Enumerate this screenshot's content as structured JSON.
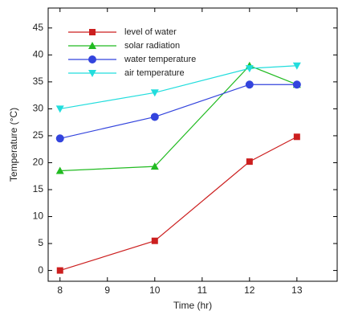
{
  "chart_data": {
    "type": "line",
    "x_label": "Time (hr)",
    "y_label": "Temperature (°C)",
    "x": [
      8,
      10,
      12,
      13
    ],
    "series": [
      {
        "name": "level of water",
        "color": "#cc1f1f",
        "marker": "square",
        "values": [
          0,
          5.5,
          20.2,
          24.8
        ]
      },
      {
        "name": "solar radiation",
        "color": "#22bb22",
        "marker": "triangle",
        "values": [
          18.5,
          19.3,
          38,
          34.5
        ]
      },
      {
        "name": "water temperature",
        "color": "#3344dd",
        "marker": "circle",
        "values": [
          24.5,
          28.5,
          34.5,
          34.5
        ]
      },
      {
        "name": "air temperature",
        "color": "#22dddd",
        "marker": "triangle-down",
        "values": [
          30,
          33,
          37.5,
          38
        ]
      }
    ],
    "xlim": [
      7.75,
      13.85
    ],
    "xticks": [
      8,
      9,
      10,
      11,
      12,
      13
    ],
    "ylim": [
      -2,
      48.7
    ],
    "yticks": [
      0,
      5,
      10,
      15,
      20,
      25,
      30,
      35,
      40,
      45
    ],
    "legend": "upper left",
    "grid": false
  }
}
